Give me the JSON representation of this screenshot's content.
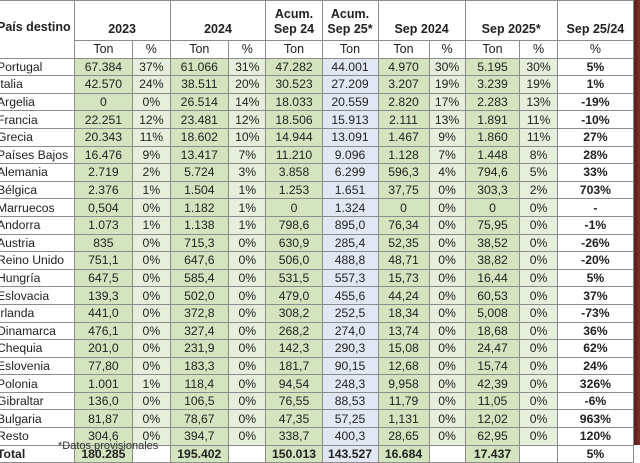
{
  "table": {
    "header": {
      "country_col": "País destino",
      "groups": [
        "2023",
        "2024",
        "Acum. Sep 24",
        "Acum. Sep 25*",
        "Sep 2024",
        "Sep 2025*",
        "Sep 25/24"
      ],
      "subheaders": [
        "Ton",
        "%",
        "Ton",
        "%",
        "Ton",
        "Ton",
        "Ton",
        "%",
        "Ton",
        "%",
        "%"
      ]
    },
    "rows": [
      {
        "country": "Portugal",
        "t2023": "67.384",
        "p2023": "37%",
        "t2024": "61.066",
        "p2024": "31%",
        "acum24": "47.282",
        "acum25": "44.001",
        "tsep24": "4.970",
        "psep24": "30%",
        "tsep25": "5.195",
        "psep25": "30%",
        "var": "5%"
      },
      {
        "country": "Italia",
        "t2023": "42.570",
        "p2023": "24%",
        "t2024": "38.511",
        "p2024": "20%",
        "acum24": "30.523",
        "acum25": "27.209",
        "tsep24": "3.207",
        "psep24": "19%",
        "tsep25": "3.239",
        "psep25": "19%",
        "var": "1%"
      },
      {
        "country": "Argelia",
        "t2023": "0",
        "p2023": "0%",
        "t2024": "26.514",
        "p2024": "14%",
        "acum24": "18.033",
        "acum25": "20.559",
        "tsep24": "2.820",
        "psep24": "17%",
        "tsep25": "2.283",
        "psep25": "13%",
        "var": "-19%"
      },
      {
        "country": "Francia",
        "t2023": "22.251",
        "p2023": "12%",
        "t2024": "23.481",
        "p2024": "12%",
        "acum24": "18.506",
        "acum25": "15.913",
        "tsep24": "2.111",
        "psep24": "13%",
        "tsep25": "1.891",
        "psep25": "11%",
        "var": "-10%"
      },
      {
        "country": "Grecia",
        "t2023": "20.343",
        "p2023": "11%",
        "t2024": "18.602",
        "p2024": "10%",
        "acum24": "14.944",
        "acum25": "13.091",
        "tsep24": "1.467",
        "psep24": "9%",
        "tsep25": "1.860",
        "psep25": "11%",
        "var": "27%"
      },
      {
        "country": "Países Bajos",
        "t2023": "16.476",
        "p2023": "9%",
        "t2024": "13.417",
        "p2024": "7%",
        "acum24": "11.210",
        "acum25": "9.096",
        "tsep24": "1.128",
        "psep24": "7%",
        "tsep25": "1.448",
        "psep25": "8%",
        "var": "28%"
      },
      {
        "country": "Alemania",
        "t2023": "2.719",
        "p2023": "2%",
        "t2024": "5.724",
        "p2024": "3%",
        "acum24": "3.858",
        "acum25": "6.299",
        "tsep24": "596,3",
        "psep24": "4%",
        "tsep25": "794,6",
        "psep25": "5%",
        "var": "33%"
      },
      {
        "country": "Bélgica",
        "t2023": "2.376",
        "p2023": "1%",
        "t2024": "1.504",
        "p2024": "1%",
        "acum24": "1.253",
        "acum25": "1.651",
        "tsep24": "37,75",
        "psep24": "0%",
        "tsep25": "303,3",
        "psep25": "2%",
        "var": "703%"
      },
      {
        "country": "Marruecos",
        "t2023": "0,504",
        "p2023": "0%",
        "t2024": "1.182",
        "p2024": "1%",
        "acum24": "0",
        "acum25": "1.324",
        "tsep24": "0",
        "psep24": "0%",
        "tsep25": "0",
        "psep25": "0%",
        "var": "-"
      },
      {
        "country": "Andorra",
        "t2023": "1.073",
        "p2023": "1%",
        "t2024": "1.138",
        "p2024": "1%",
        "acum24": "798,6",
        "acum25": "895,0",
        "tsep24": "76,34",
        "psep24": "0%",
        "tsep25": "75,95",
        "psep25": "0%",
        "var": "-1%"
      },
      {
        "country": "Austria",
        "t2023": "835",
        "p2023": "0%",
        "t2024": "715,3",
        "p2024": "0%",
        "acum24": "630,9",
        "acum25": "285,4",
        "tsep24": "52,35",
        "psep24": "0%",
        "tsep25": "38,52",
        "psep25": "0%",
        "var": "-26%"
      },
      {
        "country": "Reino Unido",
        "t2023": "751,1",
        "p2023": "0%",
        "t2024": "647,6",
        "p2024": "0%",
        "acum24": "506,0",
        "acum25": "488,8",
        "tsep24": "48,71",
        "psep24": "0%",
        "tsep25": "38,82",
        "psep25": "0%",
        "var": "-20%"
      },
      {
        "country": "Hungría",
        "t2023": "647,5",
        "p2023": "0%",
        "t2024": "585,4",
        "p2024": "0%",
        "acum24": "531,5",
        "acum25": "557,3",
        "tsep24": "15,73",
        "psep24": "0%",
        "tsep25": "16,44",
        "psep25": "0%",
        "var": "5%"
      },
      {
        "country": "Eslovacia",
        "t2023": "139,3",
        "p2023": "0%",
        "t2024": "502,0",
        "p2024": "0%",
        "acum24": "479,0",
        "acum25": "455,6",
        "tsep24": "44,24",
        "psep24": "0%",
        "tsep25": "60,53",
        "psep25": "0%",
        "var": "37%"
      },
      {
        "country": "Irlanda",
        "t2023": "441,0",
        "p2023": "0%",
        "t2024": "372,8",
        "p2024": "0%",
        "acum24": "308,2",
        "acum25": "252,5",
        "tsep24": "18,34",
        "psep24": "0%",
        "tsep25": "5,008",
        "psep25": "0%",
        "var": "-73%"
      },
      {
        "country": "Dinamarca",
        "t2023": "476,1",
        "p2023": "0%",
        "t2024": "327,4",
        "p2024": "0%",
        "acum24": "268,2",
        "acum25": "274,0",
        "tsep24": "13,74",
        "psep24": "0%",
        "tsep25": "18,68",
        "psep25": "0%",
        "var": "36%"
      },
      {
        "country": "Chequia",
        "t2023": "201,0",
        "p2023": "0%",
        "t2024": "231,9",
        "p2024": "0%",
        "acum24": "142,3",
        "acum25": "290,3",
        "tsep24": "15,08",
        "psep24": "0%",
        "tsep25": "24,47",
        "psep25": "0%",
        "var": "62%"
      },
      {
        "country": "Eslovenia",
        "t2023": "77,80",
        "p2023": "0%",
        "t2024": "183,3",
        "p2024": "0%",
        "acum24": "181,7",
        "acum25": "90,15",
        "tsep24": "12,68",
        "psep24": "0%",
        "tsep25": "15,74",
        "psep25": "0%",
        "var": "24%"
      },
      {
        "country": "Polonia",
        "t2023": "1.001",
        "p2023": "1%",
        "t2024": "118,4",
        "p2024": "0%",
        "acum24": "94,54",
        "acum25": "248,3",
        "tsep24": "9,958",
        "psep24": "0%",
        "tsep25": "42,39",
        "psep25": "0%",
        "var": "326%"
      },
      {
        "country": "Gibraltar",
        "t2023": "136,0",
        "p2023": "0%",
        "t2024": "106,5",
        "p2024": "0%",
        "acum24": "76,55",
        "acum25": "88,53",
        "tsep24": "11,79",
        "psep24": "0%",
        "tsep25": "11,05",
        "psep25": "0%",
        "var": "-6%"
      },
      {
        "country": "Bulgaria",
        "t2023": "81,87",
        "p2023": "0%",
        "t2024": "78,67",
        "p2024": "0%",
        "acum24": "47,35",
        "acum25": "57,25",
        "tsep24": "1,131",
        "psep24": "0%",
        "tsep25": "12,02",
        "psep25": "0%",
        "var": "963%"
      },
      {
        "country": "Resto",
        "t2023": "304,6",
        "p2023": "0%",
        "t2024": "394,7",
        "p2024": "0%",
        "acum24": "338,7",
        "acum25": "400,3",
        "tsep24": "28,65",
        "psep24": "0%",
        "tsep25": "62,95",
        "psep25": "0%",
        "var": "120%"
      }
    ],
    "total": {
      "country": "Total",
      "t2023": "180.285",
      "p2023": "",
      "t2024": "195.402",
      "p2024": "",
      "acum24": "150.013",
      "acum25": "143.527",
      "tsep24": "16.684",
      "psep24": "",
      "tsep25": "17.437",
      "psep25": "",
      "var": "5%"
    },
    "footnote": "*Datos provisionales"
  },
  "colors": {
    "green_dark": "#d4e4bf",
    "green_light": "#e6efdb",
    "blue_light": "#e1e8f4"
  }
}
